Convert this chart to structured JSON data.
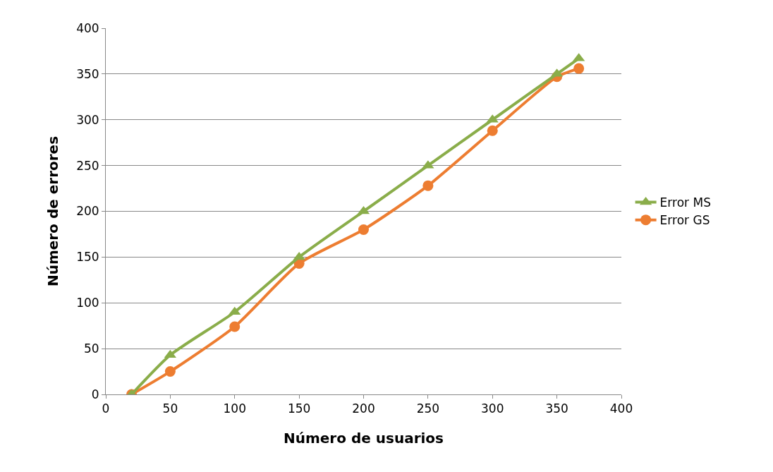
{
  "chart_data": {
    "type": "line",
    "xlabel": "Número de usuarios",
    "ylabel": "Número de errores",
    "x": [
      20,
      50,
      100,
      150,
      200,
      250,
      300,
      350,
      367
    ],
    "xlim": [
      0,
      400
    ],
    "xticks": [
      0,
      50,
      100,
      150,
      200,
      250,
      300,
      350,
      400
    ],
    "ylim": [
      0,
      400
    ],
    "yticks": [
      0,
      50,
      100,
      150,
      200,
      250,
      300,
      350,
      400
    ],
    "grid": "y",
    "legend": "right",
    "series": [
      {
        "name": "Error MS",
        "color": "#8aad4a",
        "marker": "triangle",
        "values": [
          0,
          43,
          90,
          150,
          200,
          250,
          300,
          350,
          367
        ]
      },
      {
        "name": "Error GS",
        "color": "#ed7d31",
        "marker": "circle",
        "values": [
          0,
          25,
          74,
          143,
          180,
          228,
          288,
          347,
          356
        ]
      }
    ]
  }
}
